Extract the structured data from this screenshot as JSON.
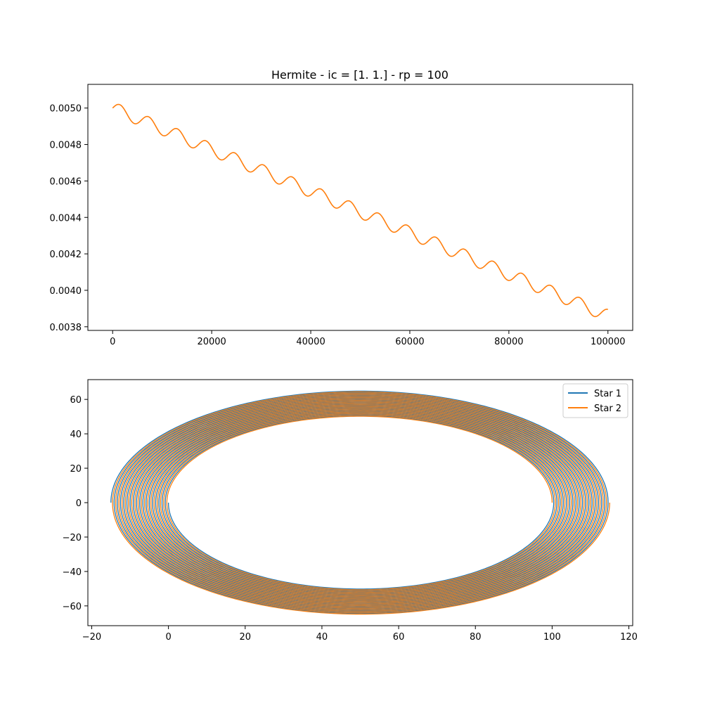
{
  "figure": {
    "background": "#ffffff"
  },
  "chart_data": [
    {
      "type": "line",
      "title": "Hermite - ic  = [1. 1.] - rp = 100",
      "xlabel": "",
      "ylabel": "",
      "xlim": [
        -5000,
        105000
      ],
      "ylim": [
        0.00378,
        0.00513
      ],
      "xticks": [
        0,
        20000,
        40000,
        60000,
        80000,
        100000
      ],
      "xtick_labels": [
        "0",
        "20000",
        "40000",
        "60000",
        "80000",
        "100000"
      ],
      "yticks": [
        0.0038,
        0.004,
        0.0042,
        0.0044,
        0.0046,
        0.0048,
        0.005
      ],
      "ytick_labels": [
        "0.0038",
        "0.0040",
        "0.0042",
        "0.0044",
        "0.0046",
        "0.0048",
        "0.0050"
      ],
      "grid": false,
      "series": [
        {
          "color": "#ff7f0e",
          "model": {
            "start": 0.005,
            "end": 0.00386,
            "amplitude": 3.5e-05,
            "period": 5800,
            "x_start": 0,
            "x_end": 100000
          }
        }
      ]
    },
    {
      "type": "line",
      "title": "",
      "xlabel": "",
      "ylabel": "",
      "xlim": [
        -21,
        121
      ],
      "ylim": [
        -71.5,
        71.5
      ],
      "xticks": [
        -20,
        0,
        20,
        40,
        60,
        80,
        100,
        120
      ],
      "xtick_labels": [
        "−20",
        "0",
        "20",
        "40",
        "60",
        "80",
        "100",
        "120"
      ],
      "yticks": [
        -60,
        -40,
        -20,
        0,
        20,
        40,
        60
      ],
      "ytick_labels": [
        "−60",
        "−40",
        "−20",
        "0",
        "20",
        "40",
        "60"
      ],
      "grid": false,
      "legend_position": "top-right",
      "series": [
        {
          "name": "Star 1",
          "color": "#1f77b4",
          "orbit": {
            "center_x": 50,
            "semi_major_start": 50,
            "semi_major_end": 65,
            "semi_minor_start": 50,
            "semi_minor_end": 65,
            "start_x": 0,
            "start_y": 0,
            "revolutions": 18,
            "direction": "counterclockwise-from-left"
          }
        },
        {
          "name": "Star 2",
          "color": "#ff7f0e",
          "orbit": {
            "center_x": 50,
            "semi_major_start": 50,
            "semi_major_end": 65,
            "semi_minor_start": 50,
            "semi_minor_end": 65,
            "start_x": 100,
            "start_y": 0,
            "revolutions": 18,
            "direction": "counterclockwise-from-right"
          }
        }
      ]
    }
  ]
}
